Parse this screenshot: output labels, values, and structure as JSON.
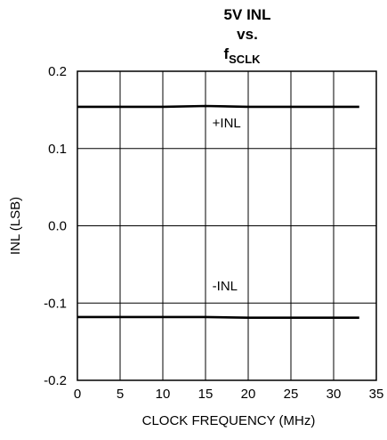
{
  "chart_data": {
    "type": "line",
    "title_lines": [
      "5V INL",
      "vs."
    ],
    "title_f": "f",
    "title_sub": "SCLK",
    "xlabel": "CLOCK FREQUENCY (MHz)",
    "ylabel": "INL (LSB)",
    "xlim": [
      0,
      35
    ],
    "ylim": [
      -0.2,
      0.2
    ],
    "x_ticks": [
      0,
      5,
      10,
      15,
      20,
      25,
      30,
      35
    ],
    "x_tick_labels": [
      "0",
      "5",
      "10",
      "15",
      "20",
      "25",
      "30",
      "35"
    ],
    "y_ticks": [
      0.2,
      0.1,
      0.0,
      -0.1,
      -0.2
    ],
    "y_tick_labels": [
      "0.2",
      "0.1",
      "0.0",
      "-0.1",
      "-0.2"
    ],
    "grid": true,
    "series": [
      {
        "name": "+INL",
        "x": [
          0,
          5,
          10,
          15,
          20,
          25,
          30,
          33
        ],
        "y": [
          0.154,
          0.154,
          0.154,
          0.155,
          0.154,
          0.154,
          0.154,
          0.154
        ]
      },
      {
        "name": "-INL",
        "x": [
          0,
          5,
          10,
          15,
          20,
          25,
          30,
          33
        ],
        "y": [
          -0.118,
          -0.118,
          -0.118,
          -0.118,
          -0.119,
          -0.119,
          -0.119,
          -0.119
        ]
      }
    ],
    "annotations": [
      {
        "text": "+INL",
        "series": 0
      },
      {
        "text": "-INL",
        "series": 1
      }
    ]
  }
}
